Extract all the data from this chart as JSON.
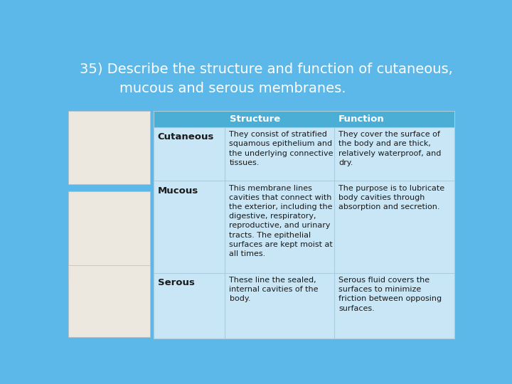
{
  "title_line1": "35) Describe the structure and function of cutaneous,",
  "title_line2": "mucous and serous membranes.",
  "bg_color": "#5BB8E8",
  "title_bg_color": "#5BB8E8",
  "header_bg_color": "#4BAED4",
  "row_bg_light": "#C8E6F5",
  "header_text_color": "#FFFFFF",
  "cell_text_color": "#1A1A1A",
  "title_text_color": "#FFFFFF",
  "col_headers": [
    "",
    "Structure",
    "Function"
  ],
  "rows": [
    {
      "label": "Cutaneous",
      "structure": "They consist of stratified\nsquamous epithelium and\nthe underlying connective\ntissues.",
      "function": "They cover the surface of\nthe body and are thick,\nrelatively waterproof, and\ndry."
    },
    {
      "label": "Mucous",
      "structure": "This membrane lines\ncavities that connect with\nthe exterior, including the\ndigestive, respiratory,\nreproductive, and urinary\ntracts. The epithelial\nsurfaces are kept moist at\nall times.",
      "function": "The purpose is to lubricate\nbody cavities through\nabsorption and secretion."
    },
    {
      "label": "Serous",
      "structure": "These line the sealed,\ninternal cavities of the\nbody.",
      "function": "Serous fluid covers the\nsurfaces to minimize\nfriction between opposing\nsurfaces."
    }
  ]
}
